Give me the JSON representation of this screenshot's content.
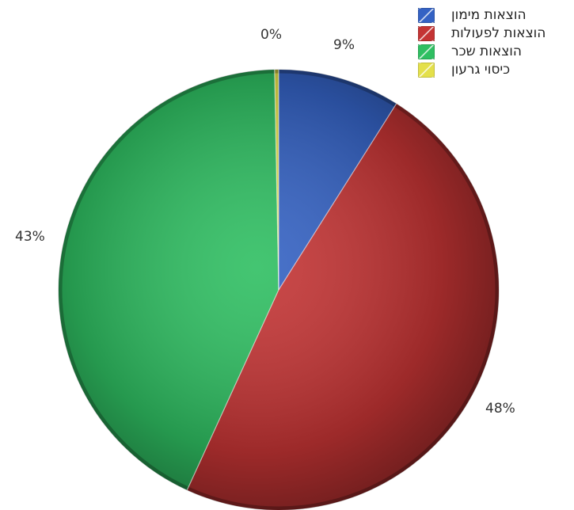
{
  "chart_data": {
    "type": "pie",
    "title": "",
    "slices": [
      {
        "name": "הוצאות מימון",
        "value": 9,
        "label": "9%",
        "color": "#3462c4"
      },
      {
        "name": "הוצאות לפעולות",
        "value": 48,
        "label": "48%",
        "color": "#c43434"
      },
      {
        "name": "הוצאות שכר",
        "value": 43,
        "label": "43%",
        "color": "#2fbf62"
      },
      {
        "name": "כיסוי גרעון",
        "value": 0.3,
        "label": "0%",
        "color": "#e4e04a"
      }
    ],
    "legend_position": "top-right",
    "start_angle": "12 o'clock",
    "direction": "clockwise"
  }
}
